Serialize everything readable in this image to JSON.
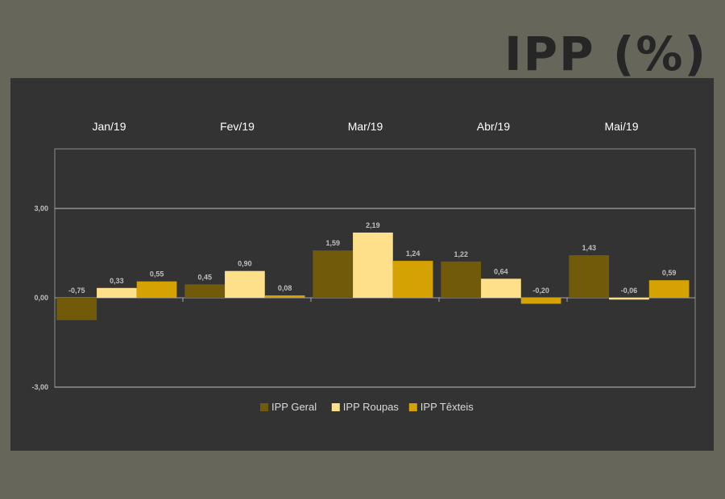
{
  "title": "IPP (%)",
  "chart_data": {
    "type": "bar",
    "categories": [
      "Jan/19",
      "Fev/19",
      "Mar/19",
      "Abr/19",
      "Mai/19"
    ],
    "series": [
      {
        "name": "IPP Geral",
        "values": [
          -0.75,
          0.45,
          1.59,
          1.22,
          1.43
        ],
        "labels": [
          "-0,75",
          "0,45",
          "1,59",
          "1,22",
          "1,43"
        ]
      },
      {
        "name": "IPP Roupas",
        "values": [
          0.33,
          0.9,
          2.19,
          0.64,
          -0.06
        ],
        "labels": [
          "0,33",
          "0,90",
          "2,19",
          "0,64",
          "-0,06"
        ]
      },
      {
        "name": "IPP Têxteis",
        "values": [
          0.55,
          0.08,
          1.24,
          -0.2,
          0.59
        ],
        "labels": [
          "0,55",
          "0,08",
          "1,24",
          "-0,20",
          "0,59"
        ]
      }
    ],
    "yticks": [
      {
        "value": 3,
        "label": "3,00"
      },
      {
        "value": 0,
        "label": "0,00"
      },
      {
        "value": -3,
        "label": "-3,00"
      }
    ],
    "ylim": [
      -3,
      5
    ],
    "grid": true,
    "legend_position": "bottom",
    "colors": {
      "IPP Geral": "#715a0a",
      "IPP Roupas": "#ffe08a",
      "IPP Têxteis": "#d4a203",
      "background": "#333333",
      "page": "#66665a",
      "text": "#ffffff",
      "tick_text": "#bfbfbf"
    }
  }
}
